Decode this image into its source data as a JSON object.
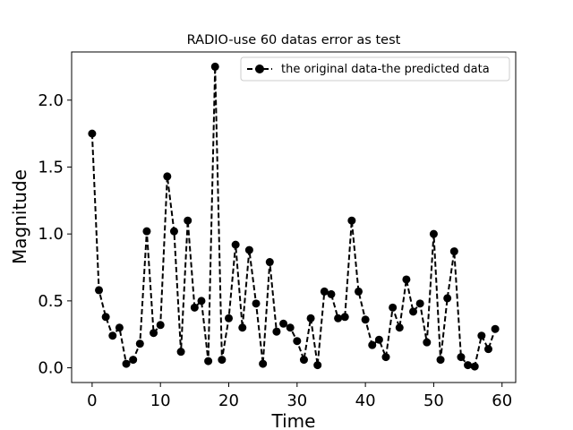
{
  "chart_data": {
    "type": "line",
    "title": "RADIO-use 60 datas error as test",
    "xlabel": "Time",
    "ylabel": "Magnitude",
    "xlim": [
      -3,
      62
    ],
    "ylim": [
      -0.11,
      2.36
    ],
    "xticks": [
      0,
      10,
      20,
      30,
      40,
      50,
      60
    ],
    "yticks": [
      0.0,
      0.5,
      1.0,
      1.5,
      2.0
    ],
    "xtick_labels": [
      "0",
      "10",
      "20",
      "30",
      "40",
      "50",
      "60"
    ],
    "ytick_labels": [
      "0.0",
      "0.5",
      "1.0",
      "1.5",
      "2.0"
    ],
    "grid": false,
    "legend_position": "top-right",
    "series": [
      {
        "name": "the original data-the predicted data",
        "color": "#000000",
        "linestyle": "dashed",
        "marker": "circle",
        "x": [
          0,
          1,
          2,
          3,
          4,
          5,
          6,
          7,
          8,
          9,
          10,
          11,
          12,
          13,
          14,
          15,
          16,
          17,
          18,
          19,
          20,
          21,
          22,
          23,
          24,
          25,
          26,
          27,
          28,
          29,
          30,
          31,
          32,
          33,
          34,
          35,
          36,
          37,
          38,
          39,
          40,
          41,
          42,
          43,
          44,
          45,
          46,
          47,
          48,
          49,
          50,
          51,
          52,
          53,
          54,
          55,
          56,
          57,
          58,
          59
        ],
        "values": [
          1.75,
          0.58,
          0.38,
          0.24,
          0.3,
          0.03,
          0.06,
          0.18,
          1.02,
          0.26,
          0.32,
          1.43,
          1.02,
          0.12,
          1.1,
          0.45,
          0.5,
          0.05,
          2.25,
          0.06,
          0.37,
          0.92,
          0.3,
          0.88,
          0.48,
          0.03,
          0.79,
          0.27,
          0.33,
          0.3,
          0.2,
          0.06,
          0.37,
          0.02,
          0.57,
          0.55,
          0.37,
          0.38,
          1.1,
          0.57,
          0.36,
          0.17,
          0.21,
          0.08,
          0.45,
          0.3,
          0.66,
          0.42,
          0.48,
          0.19,
          1.0,
          0.06,
          0.52,
          0.87,
          0.08,
          0.02,
          0.01,
          0.24,
          0.14,
          0.29
        ]
      }
    ]
  }
}
